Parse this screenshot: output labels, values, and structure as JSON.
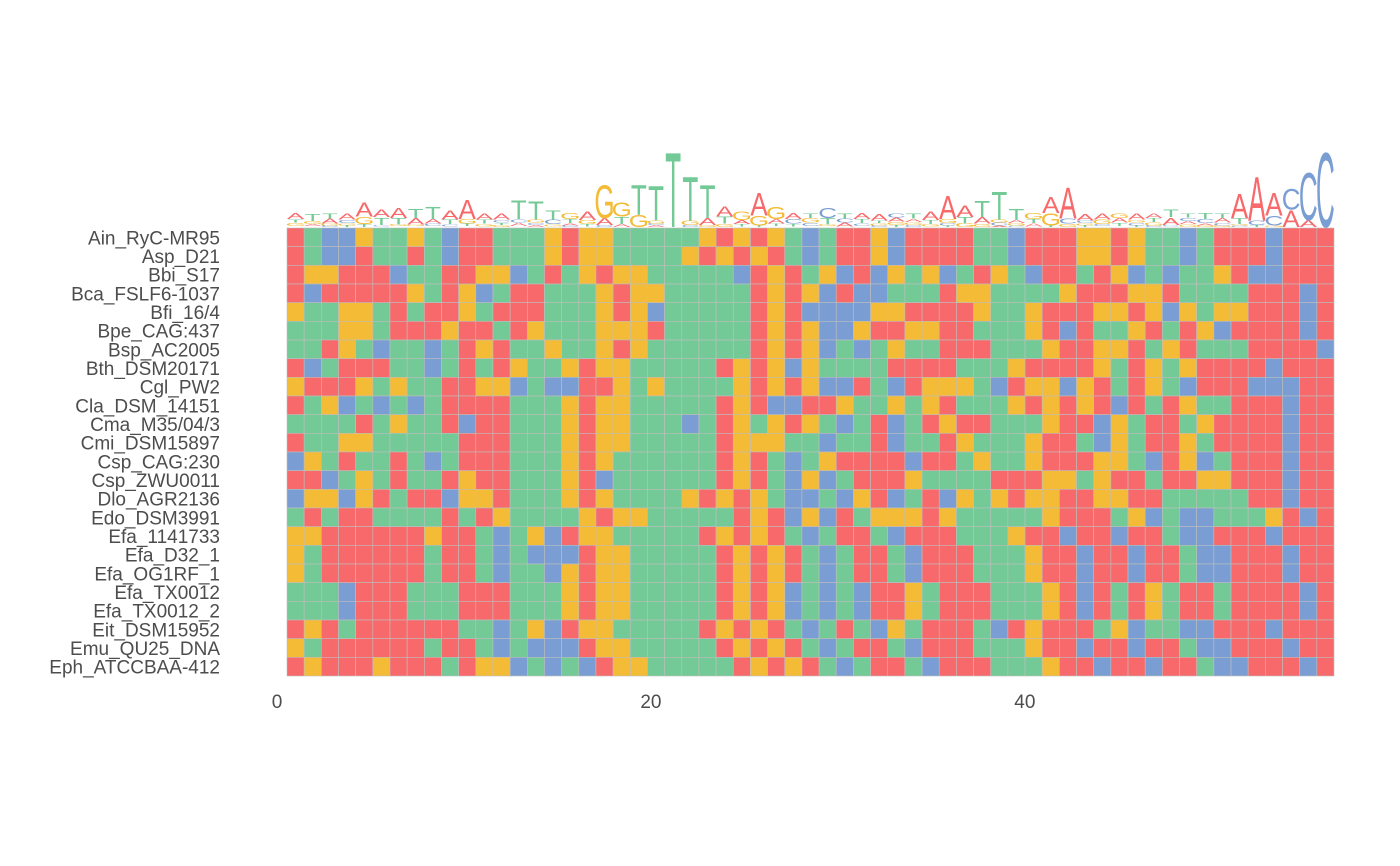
{
  "chart_data": {
    "type": "heatmap",
    "subtype": "sequence-logo-with-alignment-heatmap",
    "title": "",
    "xlabel": "",
    "ylabel": "",
    "xlim": [
      0,
      56
    ],
    "x_ticks": [
      0,
      20,
      40
    ],
    "grid": true,
    "legend": "none",
    "colors": {
      "A": "#F8696B",
      "T": "#74CA96",
      "G": "#F3BB36",
      "C": "#7A9ED3"
    },
    "sequences": [
      {
        "name": "Ain_RyC-MR95",
        "seq": "ATCCGTTGTCAATTTGAGGTTTTTGAGAGTCTAAGCAAAATTCAAAGGAGTTCTAAAC"
      },
      {
        "name": "Asp_D21",
        "seq": "ATCCATTATCAATTTGAGGTTTTGAGAGATCTAAGCAAAATTCAAAGGAGTTCTAAAC"
      },
      {
        "name": "Bbi_S17",
        "seq": "AGGAAACTTAAGGCTATGAGGTTTTTCAGATGCACGTGCTAGTCAATAGCTCTTGACC"
      },
      {
        "name": "Bca_FSLF6-1037",
        "seq": "ACAAAAAGTAGCTAATTTGAGGTTTTTAGAGCACCTTTAGGTTTTGAAAGGATTTTAAAC"
      },
      {
        "name": "Bfi_16/4",
        "seq": "GTTGGTATAAGTAAATTTGAGCTTTTTAGACCCCGGAAAAGTTGAAAGGAGCGTGGAAAC"
      },
      {
        "name": "Bpe_CAG:437",
        "seq": "TTTGGTAAAGAATAGTTTGGGATTTTTAGAGCCGAAGGAATTTGACATTGATAGCAAAAC"
      },
      {
        "name": "Bsp_AC2005",
        "seq": "TTAGTCTTCTAGATTGTTGAGTTTTTTAGAGCTCTGTTAAATTTGAAGGATGATTTAAAAC"
      },
      {
        "name": "Bth_DSM20171",
        "seq": "ACTAAATTCTATAGTTGAGGTTTTTAGAGCGTTTTAAAATTTGAAAAGTAGTGAAAAC"
      },
      {
        "name": "Cgl_PW2",
        "seq": "GAAAGTGTTAAGGCTCCAAGTGTTTTGAGAGCCATCAGGGTCAGGCGATAGTCAAACCC"
      },
      {
        "name": "Cla_DSM_14151",
        "seq": "ATGCTCTCTAAAATTTGAGGTTTTTAGACCAAGTTGTGATTTGAGAGACATAGTTAAAC"
      },
      {
        "name": "Cma_M35/04/3",
        "seq": "TTTTATGTTACAATTTGAGGTTTCTAGTGAGTCTACTAGAATTTGAACGTAATGAAAAC"
      },
      {
        "name": "Cmi_DSM15897",
        "seq": "ATTGGTTTTTAAATTTGAGGTTTTTAGGGTTCTTACTTAGTTTGAATCGTAAGTAAAAC"
      },
      {
        "name": "Csp_CAG:230",
        "seq": "CGTATTATCTAAATTTGAGTTTTTTAGATCTGAAAACAATGTTGAAAGGTCAGCTAAAC"
      },
      {
        "name": "Csp_ZWU0011",
        "seq": "AACTGTATTAGAATTTGACTTTTTTAGATCGCTAAAGTTTTAAAGGTGAATAAGGAAAC"
      },
      {
        "name": "Dlo_AGR2136",
        "seq": "CGGCGATAACGGATTTGAGTTTTGAGAGTCCTCGACTACGTGAGGAAGGAATTTTTAAC"
      },
      {
        "name": "Edo_DSM3991",
        "seq": "TATAATTTTATAGTTTTGAGGTTTTTAGACGCATGGGAGTTTTTGAAATGCTCCTTTGAC"
      },
      {
        "name": "Efa_1141733",
        "seq": "GGAAAAAAGAATCTGCAGGTTTTTAGAGATCTAATCAAATTTGAACAACAATCCAAAC"
      },
      {
        "name": "Efa_D32_1",
        "seq": "GTAAAAAATAATCTCCCAGGTTTTTAGAGATCTAATCAAATTTGAACAACAATCCAAAC"
      },
      {
        "name": "Efa_OG1RF_1",
        "seq": "GTAAAAAATAATCTTCGAGGTTTTTAGAGATCTAATCAAATTTGAACAACAATCCAAAC"
      },
      {
        "name": "Efa_TX0012",
        "seq": "TTTCAAATTTAAATTTGAGGTTTTTAGAGCTCTCAAGTAAATTTGACATAGTAATAAAAC"
      },
      {
        "name": "Efa_TX0012_2",
        "seq": "TTTCAAATTTAAATTTGAGGTTTTTAGAGCTCTCAAGTAAATTTGACATAGTAATAAAAC"
      },
      {
        "name": "Eit_DSM15952",
        "seq": "AGATAAAAAATTCTGCAGGTTTTTAGAGATCTATCGTAAATCAGAAATGCTTCCAAAC"
      },
      {
        "name": "Emu_QU25_DNA",
        "seq": "GTAAAAAATAATCTCCCAGGTTTTTAGAGATCTAATCAAATTTGAACAACAATCCAAAC"
      },
      {
        "name": "Eph_ATCCBAA-412",
        "seq": "AGAAAGAAATAGGCTCTCAGGTTTTTAGAGATCTAATCAAATTTGAACAACAATCCAAAC"
      }
    ],
    "logo_consensus": "ATAAAAATTTTAAATTTGAGGTTTTTAGAGCTATGTTAAATTGAATGGTAGTAAAAC"
  }
}
